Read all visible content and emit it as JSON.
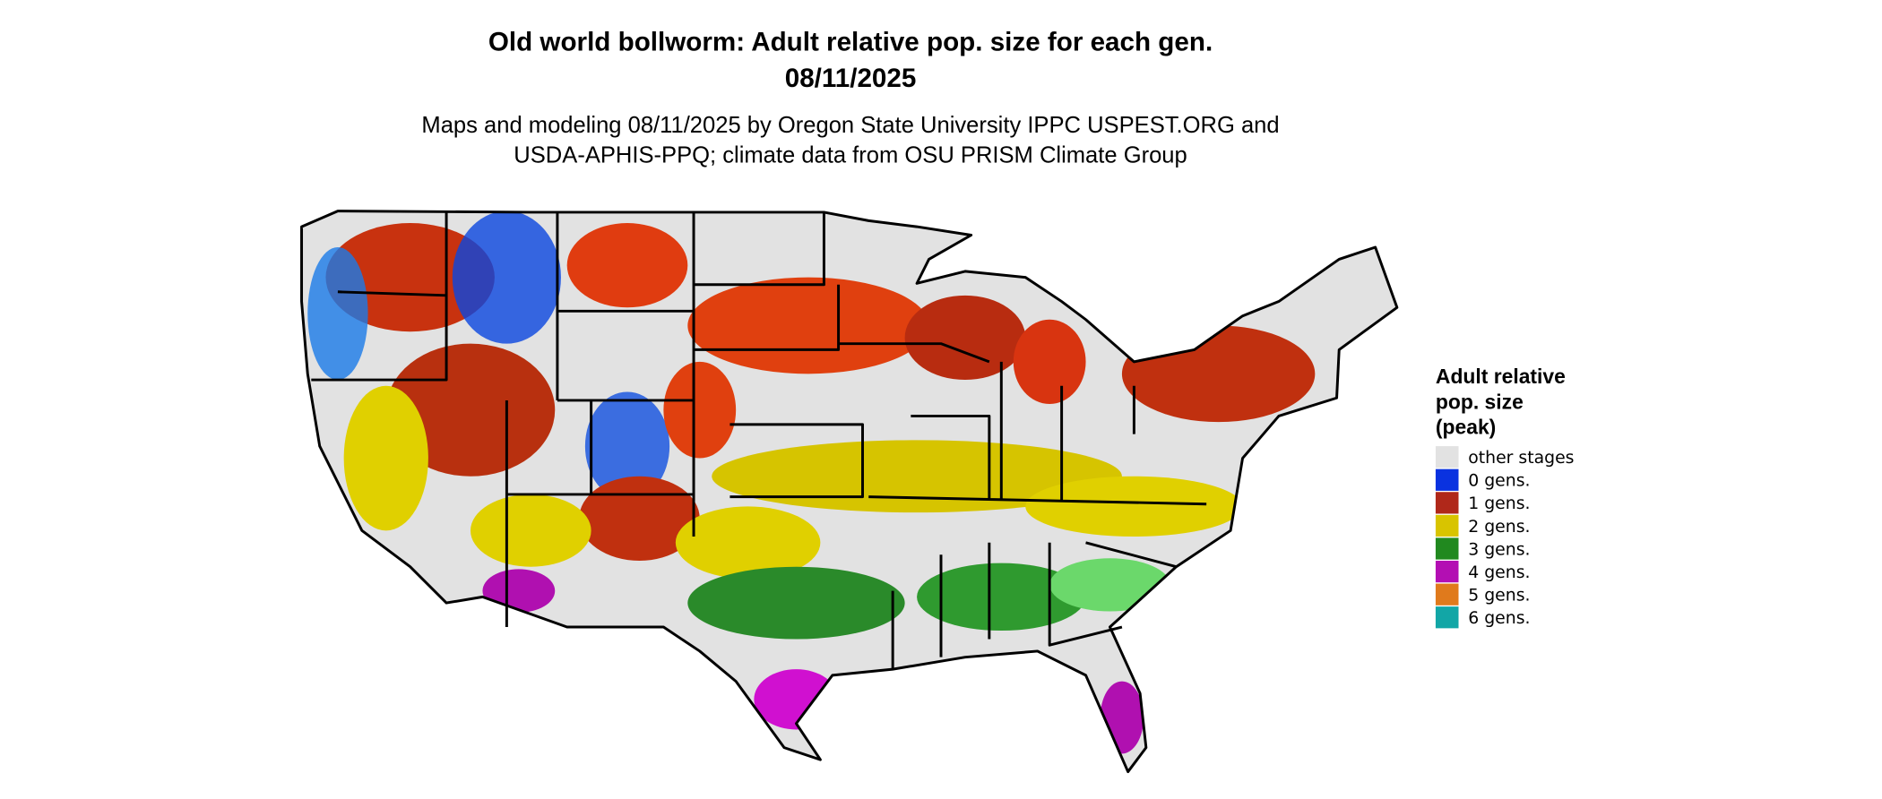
{
  "title": [
    "Old world bollworm: Adult relative pop. size for each gen.",
    "08/11/2025"
  ],
  "subtitle": [
    "Maps and modeling 08/11/2025 by Oregon State University IPPC USPEST.ORG and",
    "USDA-APHIS-PPQ; climate data from OSU PRISM Climate Group"
  ],
  "legend": {
    "title": [
      "Adult relative",
      "pop. size",
      "(peak)"
    ],
    "items": [
      {
        "label": "other stages",
        "color": "#e2e2e2"
      },
      {
        "label": "0 gens.",
        "color": "#0a32e0"
      },
      {
        "label": "1 gens.",
        "color": "#b0281a"
      },
      {
        "label": "2 gens.",
        "color": "#d8c400"
      },
      {
        "label": "3 gens.",
        "color": "#21891f"
      },
      {
        "label": "4 gens.",
        "color": "#b30fb3"
      },
      {
        "label": "5 gens.",
        "color": "#e07a1c"
      },
      {
        "label": "6 gens.",
        "color": "#12a6a6"
      }
    ]
  }
}
